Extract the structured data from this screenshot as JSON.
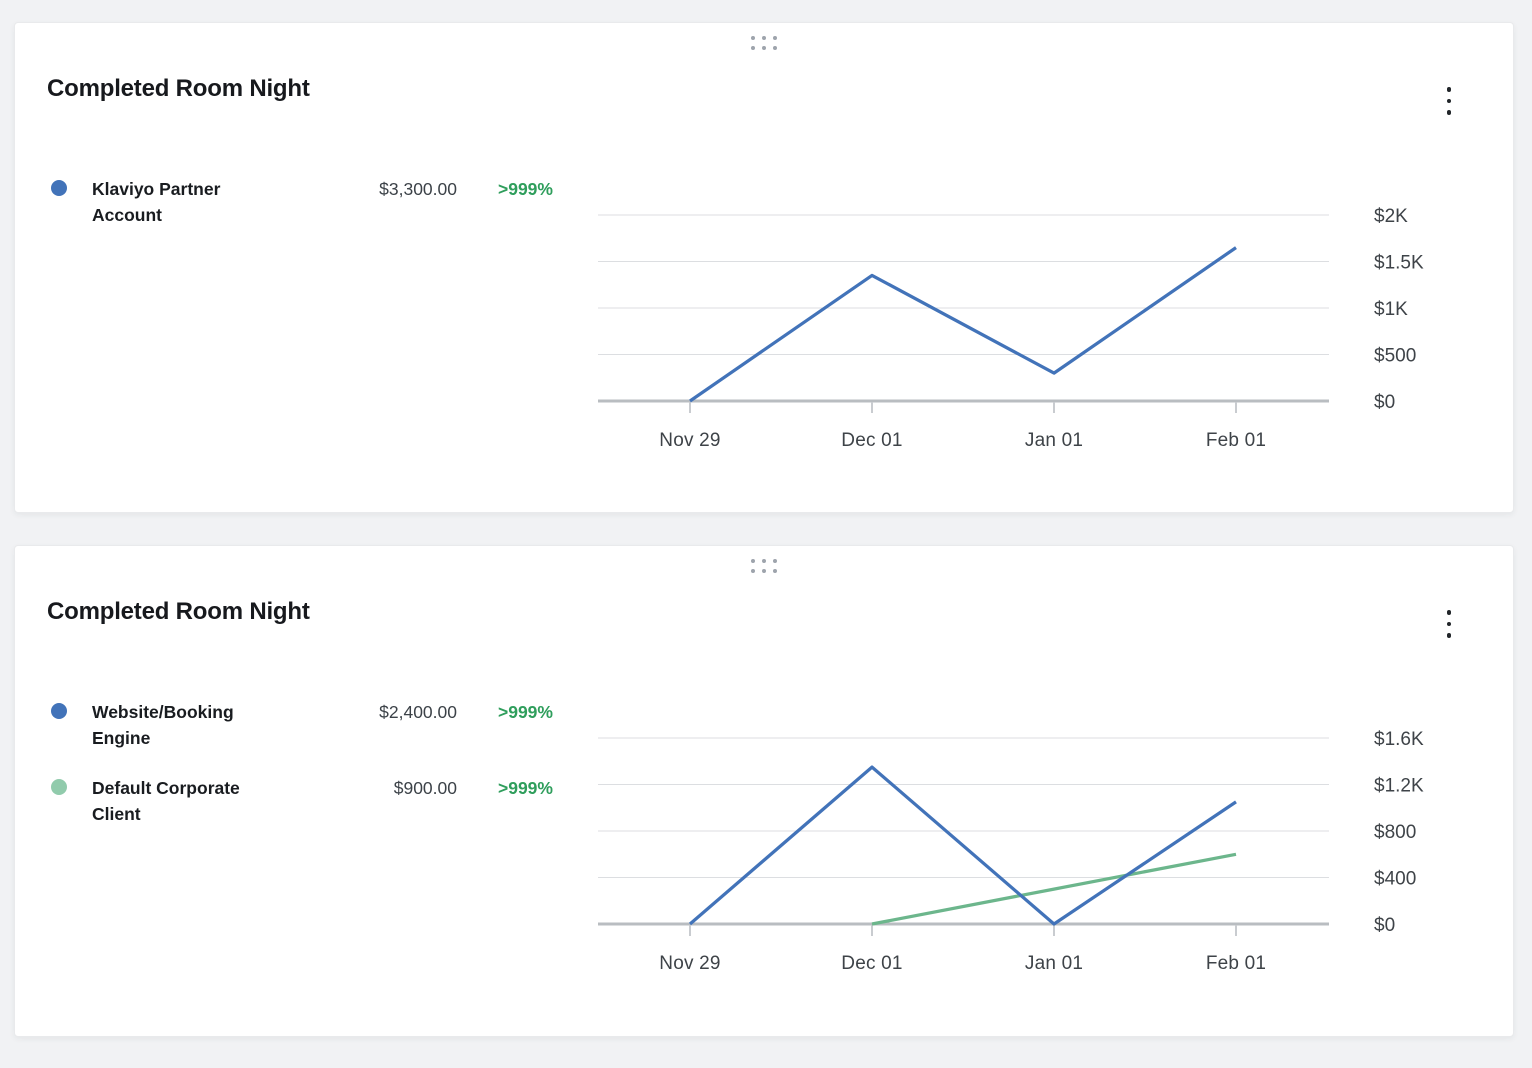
{
  "colors": {
    "page_background": "#f1f2f4",
    "card_background": "#ffffff",
    "series_blue": "#4273b9",
    "series_green": "#6cb68c",
    "legend_green_dot": "#91cbac",
    "positive_change_green": "#2f9e5c",
    "gridline": "#dcdee1",
    "axis": "#b9bdc1",
    "tick": "#c9ccd0",
    "axis_label_text": "#3e4348"
  },
  "icons": {
    "drag_handle": "grip-dots-icon",
    "card_menu": "kebab-vertical-icon"
  },
  "cards": [
    {
      "title": "Completed Room Night",
      "legend": [
        {
          "name": "Klaviyo Partner Account",
          "value": "$3,300.00",
          "change": ">999%",
          "color": "#4273b9"
        }
      ],
      "chart_data": {
        "type": "line",
        "x": [
          "Nov 29",
          "Dec 01",
          "Jan 01",
          "Feb 01"
        ],
        "series": [
          {
            "name": "Klaviyo Partner Account",
            "color": "#4273b9",
            "values": [
              0,
              1350,
              300,
              1650
            ]
          }
        ],
        "y_ticks": [
          "$2K",
          "$1.5K",
          "$1K",
          "$500",
          "$0"
        ],
        "y_tick_values": [
          2000,
          1500,
          1000,
          500,
          0
        ],
        "ylim": [
          0,
          2000
        ],
        "grid": true,
        "legend_position": "left",
        "y_axis_position": "right"
      }
    },
    {
      "title": "Completed Room Night",
      "legend": [
        {
          "name": "Website/Booking Engine",
          "value": "$2,400.00",
          "change": ">999%",
          "color": "#4273b9"
        },
        {
          "name": "Default Corporate Client",
          "value": "$900.00",
          "change": ">999%",
          "color": "#91cbac"
        }
      ],
      "chart_data": {
        "type": "line",
        "x": [
          "Nov 29",
          "Dec 01",
          "Jan 01",
          "Feb 01"
        ],
        "series": [
          {
            "name": "Website/Booking Engine",
            "color": "#4273b9",
            "values": [
              0,
              1350,
              0,
              1050
            ]
          },
          {
            "name": "Default Corporate Client",
            "color": "#6cb68c",
            "values": [
              null,
              0,
              300,
              600
            ]
          }
        ],
        "y_ticks": [
          "$1.6K",
          "$1.2K",
          "$800",
          "$400",
          "$0"
        ],
        "y_tick_values": [
          1600,
          1200,
          800,
          400,
          0
        ],
        "ylim": [
          0,
          1600
        ],
        "grid": true,
        "legend_position": "left",
        "y_axis_position": "right"
      }
    }
  ]
}
